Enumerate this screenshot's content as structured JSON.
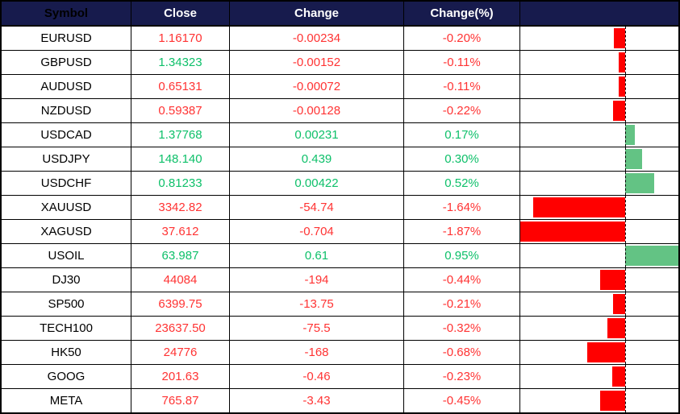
{
  "table": {
    "headers": [
      "Symbol",
      "Close",
      "Change",
      "Change(%)",
      ""
    ],
    "rows": [
      {
        "symbol": "EURUSD",
        "close": "1.16170",
        "close_color": "red",
        "change": "-0.00234",
        "change_pct_label": "-0.20%",
        "change_pct": -0.2
      },
      {
        "symbol": "GBPUSD",
        "close": "1.34323",
        "close_color": "green",
        "change": "-0.00152",
        "change_pct_label": "-0.11%",
        "change_pct": -0.11
      },
      {
        "symbol": "AUDUSD",
        "close": "0.65131",
        "close_color": "red",
        "change": "-0.00072",
        "change_pct_label": "-0.11%",
        "change_pct": -0.11
      },
      {
        "symbol": "NZDUSD",
        "close": "0.59387",
        "close_color": "red",
        "change": "-0.00128",
        "change_pct_label": "-0.22%",
        "change_pct": -0.22
      },
      {
        "symbol": "USDCAD",
        "close": "1.37768",
        "close_color": "green",
        "change": "0.00231",
        "change_pct_label": "0.17%",
        "change_pct": 0.17
      },
      {
        "symbol": "USDJPY",
        "close": "148.140",
        "close_color": "green",
        "change": "0.439",
        "change_pct_label": "0.30%",
        "change_pct": 0.3
      },
      {
        "symbol": "USDCHF",
        "close": "0.81233",
        "close_color": "green",
        "change": "0.00422",
        "change_pct_label": "0.52%",
        "change_pct": 0.52
      },
      {
        "symbol": "XAUUSD",
        "close": "3342.82",
        "close_color": "red",
        "change": "-54.74",
        "change_pct_label": "-1.64%",
        "change_pct": -1.64
      },
      {
        "symbol": "XAGUSD",
        "close": "37.612",
        "close_color": "red",
        "change": "-0.704",
        "change_pct_label": "-1.87%",
        "change_pct": -1.87
      },
      {
        "symbol": "USOIL",
        "close": "63.987",
        "close_color": "green",
        "change": "0.61",
        "change_pct_label": "0.95%",
        "change_pct": 0.95
      },
      {
        "symbol": "DJ30",
        "close": "44084",
        "close_color": "red",
        "change": "-194",
        "change_pct_label": "-0.44%",
        "change_pct": -0.44
      },
      {
        "symbol": "SP500",
        "close": "6399.75",
        "close_color": "red",
        "change": "-13.75",
        "change_pct_label": "-0.21%",
        "change_pct": -0.21
      },
      {
        "symbol": "TECH100",
        "close": "23637.50",
        "close_color": "red",
        "change": "-75.5",
        "change_pct_label": "-0.32%",
        "change_pct": -0.32
      },
      {
        "symbol": "HK50",
        "close": "24776",
        "close_color": "red",
        "change": "-168",
        "change_pct_label": "-0.68%",
        "change_pct": -0.68
      },
      {
        "symbol": "GOOG",
        "close": "201.63",
        "close_color": "red",
        "change": "-0.46",
        "change_pct_label": "-0.23%",
        "change_pct": -0.23
      },
      {
        "symbol": "META",
        "close": "765.87",
        "close_color": "red",
        "change": "-3.43",
        "change_pct_label": "-0.45%",
        "change_pct": -0.45
      }
    ]
  },
  "colors": {
    "header_bg": "#171B4D",
    "header_text": "#FFFFFF",
    "symbol_text": "#000000",
    "negative_text": "#FF3333",
    "positive_text": "#0EC06A",
    "bar_negative": "#FF0000",
    "bar_positive": "#63C384",
    "grid_border": "#000000"
  },
  "chart_data": {
    "type": "table",
    "title": "",
    "columns": [
      "Symbol",
      "Close",
      "Change",
      "Change(%)"
    ],
    "rows": [
      {
        "symbol": "EURUSD",
        "close": 1.1617,
        "change": -0.00234,
        "change_pct": -0.2
      },
      {
        "symbol": "GBPUSD",
        "close": 1.34323,
        "change": -0.00152,
        "change_pct": -0.11
      },
      {
        "symbol": "AUDUSD",
        "close": 0.65131,
        "change": -0.00072,
        "change_pct": -0.11
      },
      {
        "symbol": "NZDUSD",
        "close": 0.59387,
        "change": -0.00128,
        "change_pct": -0.22
      },
      {
        "symbol": "USDCAD",
        "close": 1.37768,
        "change": 0.00231,
        "change_pct": 0.17
      },
      {
        "symbol": "USDJPY",
        "close": 148.14,
        "change": 0.439,
        "change_pct": 0.3
      },
      {
        "symbol": "USDCHF",
        "close": 0.81233,
        "change": 0.00422,
        "change_pct": 0.52
      },
      {
        "symbol": "XAUUSD",
        "close": 3342.82,
        "change": -54.74,
        "change_pct": -1.64
      },
      {
        "symbol": "XAGUSD",
        "close": 37.612,
        "change": -0.704,
        "change_pct": -1.87
      },
      {
        "symbol": "USOIL",
        "close": 63.987,
        "change": 0.61,
        "change_pct": 0.95
      },
      {
        "symbol": "DJ30",
        "close": 44084,
        "change": -194,
        "change_pct": -0.44
      },
      {
        "symbol": "SP500",
        "close": 6399.75,
        "change": -13.75,
        "change_pct": -0.21
      },
      {
        "symbol": "TECH100",
        "close": 23637.5,
        "change": -75.5,
        "change_pct": -0.32
      },
      {
        "symbol": "HK50",
        "close": 24776,
        "change": -168,
        "change_pct": -0.68
      },
      {
        "symbol": "GOOG",
        "close": 201.63,
        "change": -0.46,
        "change_pct": -0.23
      },
      {
        "symbol": "META",
        "close": 765.87,
        "change": -3.43,
        "change_pct": -0.45
      }
    ],
    "data_bar": {
      "column": "Change(%)",
      "axis_min": -1.87,
      "axis_max": 0.95,
      "zero_axis_style": "dashed",
      "negative_color": "#FF0000",
      "positive_color": "#63C384"
    }
  }
}
